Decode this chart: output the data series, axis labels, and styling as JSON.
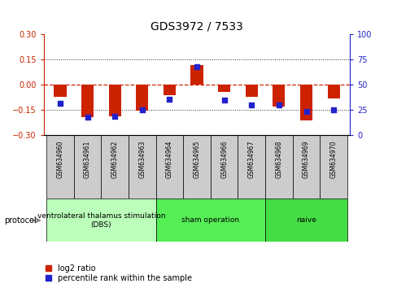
{
  "title": "GDS3972 / 7533",
  "samples": [
    "GSM634960",
    "GSM634961",
    "GSM634962",
    "GSM634963",
    "GSM634964",
    "GSM634965",
    "GSM634966",
    "GSM634967",
    "GSM634968",
    "GSM634969",
    "GSM634970"
  ],
  "log2_ratio": [
    -0.07,
    -0.19,
    -0.185,
    -0.155,
    -0.06,
    0.12,
    -0.04,
    -0.07,
    -0.13,
    -0.21,
    -0.08
  ],
  "percentile_rank": [
    32,
    18,
    19,
    25,
    36,
    68,
    35,
    30,
    30,
    24,
    25
  ],
  "ylim_left": [
    -0.3,
    0.3
  ],
  "ylim_right": [
    0,
    100
  ],
  "yticks_left": [
    -0.3,
    -0.15,
    0,
    0.15,
    0.3
  ],
  "yticks_right": [
    0,
    25,
    50,
    75,
    100
  ],
  "bar_color": "#cc2200",
  "scatter_color": "#2222cc",
  "zero_line_color": "#cc2200",
  "dotted_line_color": "#333333",
  "groups": [
    {
      "label": "ventrolateral thalamus stimulation\n(DBS)",
      "start": 0,
      "end": 3,
      "color": "#bbffbb"
    },
    {
      "label": "sham operation",
      "start": 4,
      "end": 7,
      "color": "#55ee55"
    },
    {
      "label": "naive",
      "start": 8,
      "end": 10,
      "color": "#44dd44"
    }
  ],
  "protocol_label": "protocol",
  "legend_log2": "log2 ratio",
  "legend_pct": "percentile rank within the sample",
  "title_fontsize": 10,
  "tick_fontsize": 7,
  "sample_fontsize": 5.5,
  "group_fontsize": 6.5,
  "legend_fontsize": 7
}
